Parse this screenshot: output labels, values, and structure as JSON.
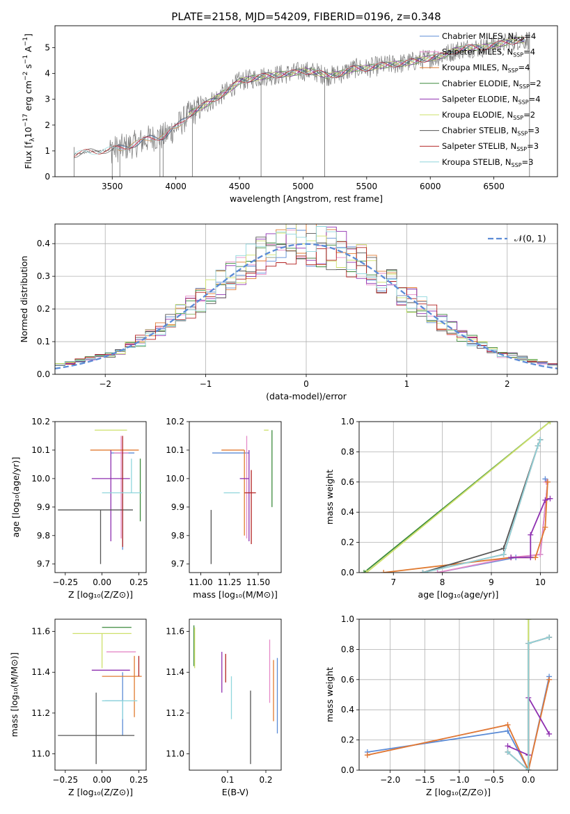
{
  "figure_title": "PLATE=2158, MJD=54209, FIBERID=0196, z=0.348",
  "colors": {
    "Chabrier MILES": "#5b8bd6",
    "Salpeter MILES": "#e58ac8",
    "Kroupa MILES": "#e07a30",
    "Chabrier ELODIE": "#3c8a3c",
    "Salpeter ELODIE": "#8e2fb0",
    "Kroupa ELODIE": "#cde06a",
    "Chabrier STELIB": "#555555",
    "Salpeter STELIB": "#b22222",
    "Kroupa STELIB": "#8fd6dc",
    "gaussian": "#5b8bd6",
    "grid": "#b0b0b0"
  },
  "chart_data": [
    {
      "id": "spectrum",
      "type": "line",
      "xlabel": "wavelength [Angstrom, rest frame]",
      "ylabel_main": "Flux [f",
      "ylabel_sub": "λ",
      "ylabel_rest": "10",
      "ylabel_exp1": "−17",
      "ylabel_mid": " erg cm",
      "ylabel_exp2": "−2",
      "ylabel_s": " s",
      "ylabel_exp3": "−1",
      "ylabel_a": " A",
      "ylabel_exp4": "−1",
      "ylabel_end": "]",
      "xlim": [
        3050,
        7000
      ],
      "ylim": [
        0,
        5.85
      ],
      "xticks": [
        "3500",
        "4000",
        "4500",
        "5000",
        "5500",
        "6000",
        "6500"
      ],
      "yticks": [
        "0",
        "1",
        "2",
        "3",
        "4",
        "5"
      ],
      "legend": [
        {
          "name": "Chabrier MILES",
          "nssp": "4"
        },
        {
          "name": "Salpeter MILES",
          "nssp": "4"
        },
        {
          "name": "Kroupa MILES",
          "nssp": "4"
        },
        {
          "name": "Chabrier ELODIE",
          "nssp": "2"
        },
        {
          "name": "Salpeter ELODIE",
          "nssp": "4"
        },
        {
          "name": "Kroupa ELODIE",
          "nssp": "2"
        },
        {
          "name": "Chabrier STELIB",
          "nssp": "3"
        },
        {
          "name": "Salpeter STELIB",
          "nssp": "3"
        },
        {
          "name": "Kroupa STELIB",
          "nssp": "3"
        }
      ],
      "data_sampled": {
        "x": [
          3200,
          3300,
          3400,
          3500,
          3600,
          3700,
          3800,
          3900,
          4000,
          4100,
          4200,
          4300,
          4400,
          4500,
          4600,
          4700,
          4800,
          4900,
          5000,
          5100,
          5200,
          5300,
          5400,
          5500,
          5600,
          5700,
          5800,
          5900,
          6000,
          6100,
          6200,
          6300,
          6400,
          6500,
          6600,
          6700,
          6800
        ],
        "y": [
          0.85,
          0.95,
          1.0,
          1.05,
          1.15,
          1.3,
          1.5,
          1.55,
          1.9,
          2.4,
          2.7,
          3.0,
          3.3,
          3.7,
          3.8,
          3.9,
          3.95,
          4.0,
          4.1,
          4.05,
          3.9,
          4.0,
          4.2,
          4.2,
          4.3,
          4.35,
          4.4,
          4.5,
          4.6,
          4.7,
          4.9,
          5.0,
          5.0,
          5.1,
          5.2,
          5.3,
          5.3
        ]
      }
    },
    {
      "id": "residuals",
      "type": "histogram",
      "xlabel": "(data-model)/error",
      "ylabel": "Normed distribution",
      "xlim": [
        -2.5,
        2.5
      ],
      "ylim": [
        0,
        0.46
      ],
      "xticks": [
        "−2",
        "−1",
        "0",
        "1",
        "2"
      ],
      "yticks": [
        "0.0",
        "0.1",
        "0.2",
        "0.3",
        "0.4"
      ],
      "legend_label": "𝒩(0, 1)",
      "reference": "gaussian N(0,1)"
    },
    {
      "id": "age_vs_Z",
      "type": "scatter",
      "xlabel": "Z [log₁₀(Z/Z⊙)]",
      "ylabel": "age  [log₁₀(age/yr)]",
      "xlim": [
        -0.32,
        0.3
      ],
      "ylim": [
        9.67,
        10.2
      ],
      "xticks": [
        "−0.25",
        "0.00",
        "0.25"
      ],
      "yticks": [
        "9.7",
        "9.8",
        "9.9",
        "10.0",
        "10.1",
        "10.2"
      ],
      "points": [
        {
          "series": "Chabrier MILES",
          "x": 0.14,
          "y": 10.09,
          "xerr": [
            0.08,
            0.08
          ],
          "yerr": [
            0.34,
            0.0
          ]
        },
        {
          "series": "Salpeter MILES",
          "x": 0.13,
          "y": 10.09,
          "xerr": [
            0.05,
            0.05
          ],
          "yerr": [
            0.3,
            0.06
          ]
        },
        {
          "series": "Kroupa MILES",
          "x": -0.08,
          "y": 10.1,
          "xerr": [
            0.0,
            0.33
          ],
          "yerr": [
            0.0,
            0.0
          ]
        },
        {
          "series": "Chabrier ELODIE",
          "x": 0.26,
          "y": 9.95,
          "xerr": [
            0.0,
            0.0
          ],
          "yerr": [
            0.1,
            0.12
          ]
        },
        {
          "series": "Salpeter ELODIE",
          "x": 0.06,
          "y": 10.0,
          "xerr": [
            0.13,
            0.13
          ],
          "yerr": [
            0.22,
            0.1
          ]
        },
        {
          "series": "Kroupa ELODIE",
          "x": 0.17,
          "y": 10.17,
          "xerr": [
            0.22,
            0.0
          ],
          "yerr": [
            0.0,
            0.0
          ]
        },
        {
          "series": "Chabrier STELIB",
          "x": -0.01,
          "y": 9.89,
          "xerr": [
            0.29,
            0.22
          ],
          "yerr": [
            0.19,
            0.0
          ]
        },
        {
          "series": "Salpeter STELIB",
          "x": 0.14,
          "y": 10.0,
          "xerr": [
            0.0,
            0.0
          ],
          "yerr": [
            0.24,
            0.15
          ]
        },
        {
          "series": "Kroupa STELIB",
          "x": 0.2,
          "y": 9.95,
          "xerr": [
            0.2,
            0.07
          ],
          "yerr": [
            0.0,
            0.12
          ]
        }
      ]
    },
    {
      "id": "age_vs_mass",
      "type": "scatter",
      "xlabel": "mass [log₁₀(M/M⊙)]",
      "ylabel": "",
      "xlim": [
        10.9,
        11.7
      ],
      "ylim": [
        9.67,
        10.2
      ],
      "xticks": [
        "11.00",
        "11.25",
        "11.50"
      ],
      "yticks": [
        "9.7",
        "9.8",
        "9.9",
        "10.0",
        "10.1",
        "10.2"
      ],
      "points": [
        {
          "series": "Chabrier MILES",
          "x": 11.26,
          "y": 10.09,
          "xerr": [
            0.16,
            0.16
          ],
          "yerr": [
            0.0,
            0.0
          ]
        },
        {
          "series": "Salpeter MILES",
          "x": 11.4,
          "y": 10.09,
          "xerr": [
            0.0,
            0.0
          ],
          "yerr": [
            0.3,
            0.06
          ]
        },
        {
          "series": "Kroupa MILES",
          "x": 11.38,
          "y": 10.1,
          "xerr": [
            0.2,
            0.0
          ],
          "yerr": [
            0.3,
            0.0
          ]
        },
        {
          "series": "Chabrier ELODIE",
          "x": 11.62,
          "y": 10.17,
          "xerr": [
            0.0,
            0.0
          ],
          "yerr": [
            0.27,
            0.0
          ]
        },
        {
          "series": "Salpeter ELODIE",
          "x": 11.42,
          "y": 10.0,
          "xerr": [
            0.08,
            0.0
          ],
          "yerr": [
            0.22,
            0.1
          ]
        },
        {
          "series": "Kroupa ELODIE",
          "x": 11.59,
          "y": 10.17,
          "xerr": [
            0.04,
            0.0
          ],
          "yerr": [
            0.0,
            0.0
          ]
        },
        {
          "series": "Chabrier STELIB",
          "x": 11.09,
          "y": 9.89,
          "xerr": [
            0.0,
            0.0
          ],
          "yerr": [
            0.19,
            0.0
          ]
        },
        {
          "series": "Salpeter STELIB",
          "x": 11.44,
          "y": 9.95,
          "xerr": [
            0.06,
            0.04
          ],
          "yerr": [
            0.18,
            0.08
          ]
        },
        {
          "series": "Kroupa STELIB",
          "x": 11.26,
          "y": 9.95,
          "xerr": [
            0.06,
            0.08
          ],
          "yerr": [
            0.0,
            0.0
          ]
        }
      ]
    },
    {
      "id": "mass_weight_vs_age",
      "type": "line",
      "xlabel": "age  [log₁₀(age/yr)]",
      "ylabel": "mass weight",
      "xlim": [
        6.3,
        10.35
      ],
      "ylim": [
        0,
        1.0
      ],
      "xticks": [
        "7",
        "8",
        "9",
        "10"
      ],
      "yticks": [
        "0.0",
        "0.2",
        "0.4",
        "0.6",
        "0.8",
        "1.0"
      ],
      "series": [
        {
          "name": "Chabrier MILES",
          "x": [
            7.9,
            9.5,
            10.0,
            10.15,
            10.1
          ],
          "y": [
            0.0,
            0.1,
            0.12,
            0.6,
            0.62
          ]
        },
        {
          "name": "Salpeter MILES",
          "x": [
            7.9,
            9.4,
            10.0,
            10.15,
            10.12
          ],
          "y": [
            0.0,
            0.1,
            0.12,
            0.6,
            0.6
          ]
        },
        {
          "name": "Kroupa MILES",
          "x": [
            6.8,
            9.4,
            9.9,
            10.1,
            10.15
          ],
          "y": [
            0.0,
            0.1,
            0.1,
            0.3,
            0.6
          ]
        },
        {
          "name": "Chabrier ELODIE",
          "x": [
            6.4,
            10.2
          ],
          "y": [
            0.0,
            1.0
          ]
        },
        {
          "name": "Salpeter ELODIE",
          "x": [
            9.4,
            9.8,
            9.8,
            10.1,
            10.2
          ],
          "y": [
            0.1,
            0.1,
            0.25,
            0.48,
            0.49
          ]
        },
        {
          "name": "Kroupa ELODIE",
          "x": [
            6.45,
            10.2
          ],
          "y": [
            0.0,
            1.0
          ]
        },
        {
          "name": "Chabrier STELIB",
          "x": [
            7.6,
            9.25,
            9.95,
            10.0
          ],
          "y": [
            0.0,
            0.16,
            0.84,
            0.88
          ]
        },
        {
          "name": "Salpeter STELIB",
          "x": [
            7.6,
            9.25,
            9.95,
            10.0
          ],
          "y": [
            0.0,
            0.12,
            0.84,
            0.88
          ]
        },
        {
          "name": "Kroupa STELIB",
          "x": [
            7.6,
            9.25,
            9.95,
            10.0
          ],
          "y": [
            0.0,
            0.12,
            0.84,
            0.88
          ]
        }
      ]
    },
    {
      "id": "mass_vs_Z",
      "type": "scatter",
      "xlabel": "Z [log₁₀(Z/Z⊙)]",
      "ylabel": "mass [log₁₀(M/M⊙)]",
      "xlim": [
        -0.32,
        0.3
      ],
      "ylim": [
        10.92,
        11.66
      ],
      "xticks": [
        "−0.25",
        "0.00",
        "0.25"
      ],
      "yticks": [
        "11.0",
        "11.2",
        "11.4",
        "11.6"
      ],
      "points": [
        {
          "series": "Chabrier MILES",
          "x": 0.14,
          "y": 11.26,
          "xerr": [
            0.12,
            0.0
          ],
          "yerr": [
            0.17,
            0.14
          ]
        },
        {
          "series": "Salpeter MILES",
          "x": 0.13,
          "y": 11.5,
          "xerr": [
            0.1,
            0.1
          ],
          "yerr": [
            0.0,
            0.0
          ]
        },
        {
          "series": "Kroupa MILES",
          "x": 0.22,
          "y": 11.38,
          "xerr": [
            0.22,
            0.05
          ],
          "yerr": [
            0.2,
            0.1
          ]
        },
        {
          "series": "Chabrier ELODIE",
          "x": 0.0,
          "y": 11.62,
          "xerr": [
            0.0,
            0.2
          ],
          "yerr": [
            0.0,
            0.0
          ]
        },
        {
          "series": "Salpeter ELODIE",
          "x": 0.06,
          "y": 11.41,
          "xerr": [
            0.13,
            0.13
          ],
          "yerr": [
            0.0,
            0.0
          ]
        },
        {
          "series": "Kroupa ELODIE",
          "x": 0.0,
          "y": 11.59,
          "xerr": [
            0.2,
            0.2
          ],
          "yerr": [
            0.17,
            0.0
          ]
        },
        {
          "series": "Chabrier STELIB",
          "x": -0.04,
          "y": 11.09,
          "xerr": [
            0.26,
            0.26
          ],
          "yerr": [
            0.14,
            0.21
          ]
        },
        {
          "series": "Salpeter STELIB",
          "x": 0.25,
          "y": 11.38,
          "xerr": [
            0.0,
            0.0
          ],
          "yerr": [
            0.0,
            0.1
          ]
        },
        {
          "series": "Kroupa STELIB",
          "x": 0.14,
          "y": 11.26,
          "xerr": [
            0.14,
            0.1
          ],
          "yerr": [
            0.09,
            0.0
          ]
        }
      ]
    },
    {
      "id": "mass_vs_ebv",
      "type": "scatter",
      "xlabel": "E(B-V)",
      "ylabel": "",
      "xlim": [
        0.0,
        0.24
      ],
      "ylim": [
        10.92,
        11.66
      ],
      "xticks": [
        "0.1",
        "0.2"
      ],
      "yticks": [
        "11.0",
        "11.2",
        "11.4",
        "11.6"
      ],
      "points": [
        {
          "series": "Chabrier MILES",
          "x": 0.23,
          "y": 11.27,
          "yerr": [
            0.17,
            0.2
          ]
        },
        {
          "series": "Salpeter MILES",
          "x": 0.21,
          "y": 11.4,
          "yerr": [
            0.15,
            0.16
          ]
        },
        {
          "series": "Kroupa MILES",
          "x": 0.22,
          "y": 11.3,
          "yerr": [
            0.14,
            0.16
          ]
        },
        {
          "series": "Chabrier ELODIE",
          "x": 0.012,
          "y": 11.53,
          "yerr": [
            0.1,
            0.1
          ]
        },
        {
          "series": "Salpeter ELODIE",
          "x": 0.085,
          "y": 11.4,
          "yerr": [
            0.1,
            0.1
          ]
        },
        {
          "series": "Kroupa ELODIE",
          "x": 0.014,
          "y": 11.52,
          "yerr": [
            0.1,
            0.1
          ]
        },
        {
          "series": "Chabrier STELIB",
          "x": 0.16,
          "y": 11.13,
          "yerr": [
            0.18,
            0.18
          ]
        },
        {
          "series": "Salpeter STELIB",
          "x": 0.095,
          "y": 11.42,
          "yerr": [
            0.07,
            0.07
          ]
        },
        {
          "series": "Kroupa STELIB",
          "x": 0.11,
          "y": 11.28,
          "yerr": [
            0.11,
            0.1
          ]
        }
      ]
    },
    {
      "id": "mass_weight_vs_Z",
      "type": "line",
      "xlabel": "Z [log₁₀(Z/Z⊙)]",
      "ylabel": "mass weight",
      "xlim": [
        -2.45,
        0.42
      ],
      "ylim": [
        0,
        1.0
      ],
      "xticks": [
        "−2.0",
        "−1.5",
        "−1.0",
        "−0.5",
        "0.0"
      ],
      "yticks": [
        "0.0",
        "0.2",
        "0.4",
        "0.6",
        "0.8",
        "1.0"
      ],
      "series": [
        {
          "name": "Chabrier MILES",
          "x": [
            -2.33,
            -0.3,
            0.0,
            0.3
          ],
          "y": [
            0.12,
            0.26,
            0.0,
            0.62
          ]
        },
        {
          "name": "Salpeter MILES",
          "x": [
            -2.33,
            -0.3,
            0.0,
            0.3
          ],
          "y": [
            0.1,
            0.3,
            0.0,
            0.6
          ]
        },
        {
          "name": "Kroupa MILES",
          "x": [
            -2.33,
            -0.3,
            0.0,
            0.3
          ],
          "y": [
            0.1,
            0.3,
            0.0,
            0.6
          ]
        },
        {
          "name": "Chabrier ELODIE",
          "x": [
            0.0,
            0.0
          ],
          "y": [
            0.0,
            1.0
          ]
        },
        {
          "name": "Salpeter ELODIE",
          "x": [
            -0.3,
            0.0,
            0.0,
            0.3
          ],
          "y": [
            0.16,
            0.1,
            0.48,
            0.24
          ]
        },
        {
          "name": "Kroupa ELODIE",
          "x": [
            0.0,
            0.0
          ],
          "y": [
            0.0,
            1.0
          ]
        },
        {
          "name": "Chabrier STELIB",
          "x": [
            -0.3,
            0.0,
            0.0,
            0.3
          ],
          "y": [
            0.12,
            0.0,
            0.84,
            0.88
          ]
        },
        {
          "name": "Salpeter STELIB",
          "x": [
            -0.3,
            0.0,
            0.0,
            0.3
          ],
          "y": [
            0.12,
            0.0,
            0.84,
            0.88
          ]
        },
        {
          "name": "Kroupa STELIB",
          "x": [
            -0.3,
            0.0,
            0.0,
            0.3
          ],
          "y": [
            0.12,
            0.0,
            0.84,
            0.88
          ]
        }
      ]
    }
  ]
}
